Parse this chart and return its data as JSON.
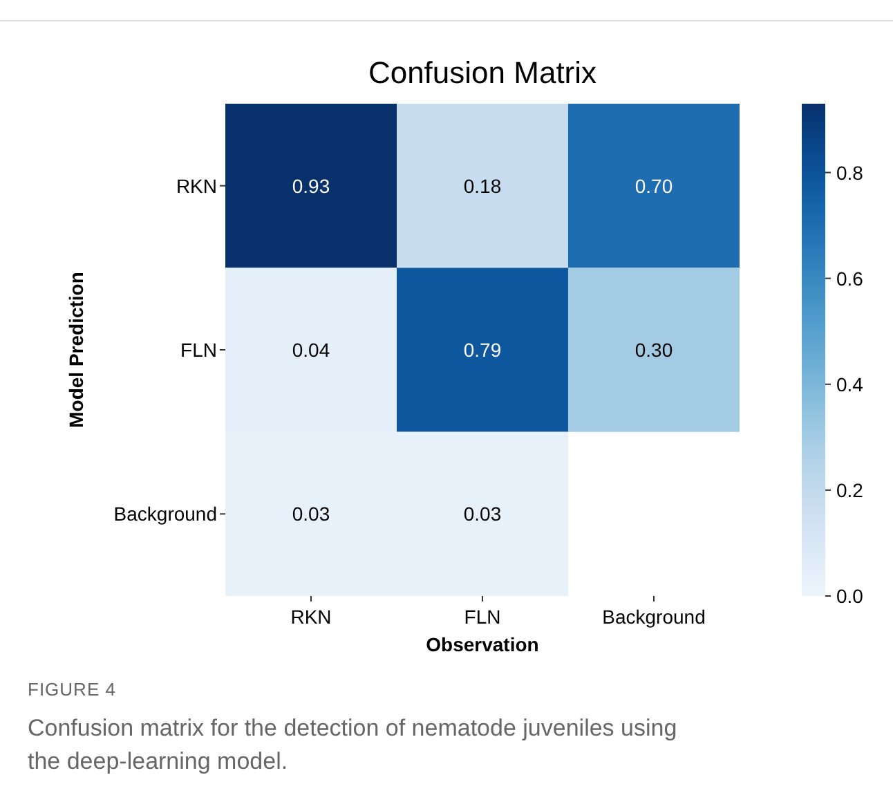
{
  "chart_data": {
    "type": "heatmap",
    "title": "Confusion Matrix",
    "xlabel": "Observation",
    "ylabel": "Model Prediction",
    "categories": [
      "RKN",
      "FLN",
      "Background"
    ],
    "y_categories": [
      "RKN",
      "FLN",
      "Background"
    ],
    "cells": [
      [
        0.93,
        0.18,
        0.7
      ],
      [
        0.04,
        0.79,
        0.3
      ],
      [
        0.03,
        0.03,
        null
      ]
    ],
    "cell_labels": [
      [
        "0.93",
        "0.18",
        "0.70"
      ],
      [
        "0.04",
        "0.79",
        "0.30"
      ],
      [
        "0.03",
        "0.03",
        null
      ]
    ],
    "clim": [
      0,
      0.93
    ],
    "cticks": [
      {
        "value": 0,
        "label": "0.0"
      },
      {
        "value": 0.2,
        "label": "0.2"
      },
      {
        "value": 0.4,
        "label": "0.4"
      },
      {
        "value": 0.6,
        "label": "0.6"
      },
      {
        "value": 0.8,
        "label": "0.8"
      }
    ],
    "data_labels": true,
    "annotations": [
      "FIGURE 4",
      "Confusion matrix for the detection of nematode juveniles using the deep-learning model."
    ]
  }
}
